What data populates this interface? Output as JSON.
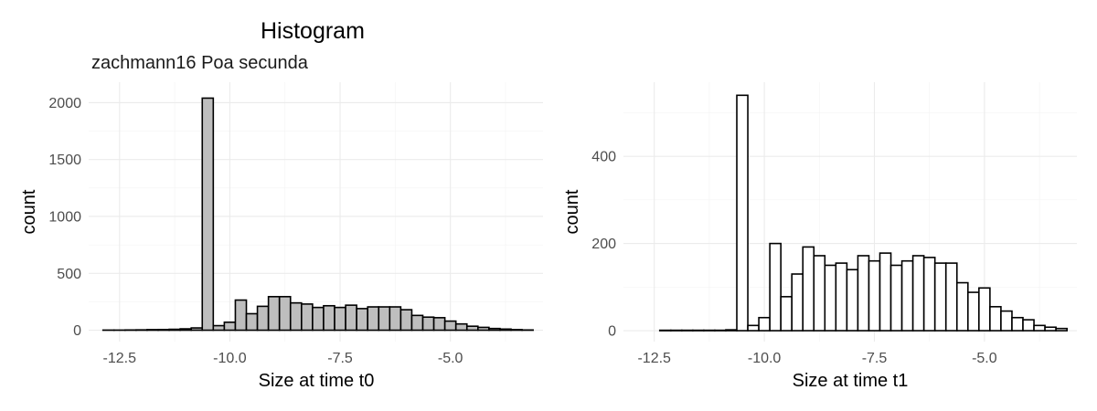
{
  "title": "Histogram",
  "subtitle": "zachmann16 Poa secunda",
  "chart_data": [
    {
      "type": "bar",
      "subtype": "histogram",
      "xlabel": "Size at time t0",
      "ylabel": "count",
      "xlim": [
        -13.2,
        -2.9
      ],
      "ylim": [
        -100,
        2180
      ],
      "x_ticks": [
        -12.5,
        -10.0,
        -7.5,
        -5.0
      ],
      "x_tick_labels": [
        "-12.5",
        "-10.0",
        "-7.5",
        "-5.0"
      ],
      "y_ticks": [
        0,
        500,
        1000,
        1500,
        2000
      ],
      "y_tick_labels": [
        "0",
        "500",
        "1000",
        "1500",
        "2000"
      ],
      "grid": true,
      "bar_fill": "#bebebe",
      "bar_stroke": "#000000",
      "bin_width": 0.25,
      "bins_start": [
        -12.875,
        -12.625,
        -12.375,
        -12.125,
        -11.875,
        -11.625,
        -11.375,
        -11.125,
        -10.875,
        -10.625,
        -10.375,
        -10.125,
        -9.875,
        -9.625,
        -9.375,
        -9.125,
        -8.875,
        -8.625,
        -8.375,
        -8.125,
        -7.875,
        -7.625,
        -7.375,
        -7.125,
        -6.875,
        -6.625,
        -6.375,
        -6.125,
        -5.875,
        -5.625,
        -5.375,
        -5.125,
        -4.875,
        -4.625,
        -4.375,
        -4.125,
        -3.875,
        -3.625,
        -3.375
      ],
      "values": [
        1,
        1,
        2,
        3,
        5,
        6,
        8,
        12,
        20,
        2040,
        40,
        70,
        265,
        145,
        210,
        295,
        295,
        240,
        230,
        200,
        215,
        200,
        220,
        190,
        205,
        205,
        205,
        180,
        130,
        115,
        110,
        80,
        55,
        35,
        25,
        15,
        10,
        5,
        2
      ]
    },
    {
      "type": "bar",
      "subtype": "histogram",
      "xlabel": "Size at time t1",
      "ylabel": "count",
      "xlim": [
        -13.2,
        -2.9
      ],
      "ylim": [
        -25,
        570
      ],
      "x_ticks": [
        -12.5,
        -10.0,
        -7.5,
        -5.0
      ],
      "x_tick_labels": [
        "-12.5",
        "-10.0",
        "-7.5",
        "-5.0"
      ],
      "y_ticks": [
        0,
        200,
        400
      ],
      "y_tick_labels": [
        "0",
        "200",
        "400"
      ],
      "grid": true,
      "bar_fill": "#ffffff",
      "bar_stroke": "#000000",
      "bin_width": 0.25,
      "bins_start": [
        -12.875,
        -12.625,
        -12.375,
        -12.125,
        -11.875,
        -11.625,
        -11.375,
        -11.125,
        -10.875,
        -10.625,
        -10.375,
        -10.125,
        -9.875,
        -9.625,
        -9.375,
        -9.125,
        -8.875,
        -8.625,
        -8.375,
        -8.125,
        -7.875,
        -7.625,
        -7.375,
        -7.125,
        -6.875,
        -6.625,
        -6.375,
        -6.125,
        -5.875,
        -5.625,
        -5.375,
        -5.125,
        -4.875,
        -4.625,
        -4.375,
        -4.125,
        -3.875,
        -3.625,
        -3.375
      ],
      "values": [
        0,
        0,
        1,
        1,
        1,
        1,
        1,
        1,
        2,
        540,
        12,
        30,
        200,
        78,
        130,
        192,
        172,
        150,
        155,
        140,
        172,
        160,
        178,
        150,
        160,
        172,
        168,
        155,
        155,
        110,
        88,
        98,
        55,
        45,
        30,
        25,
        12,
        8,
        5
      ]
    }
  ]
}
